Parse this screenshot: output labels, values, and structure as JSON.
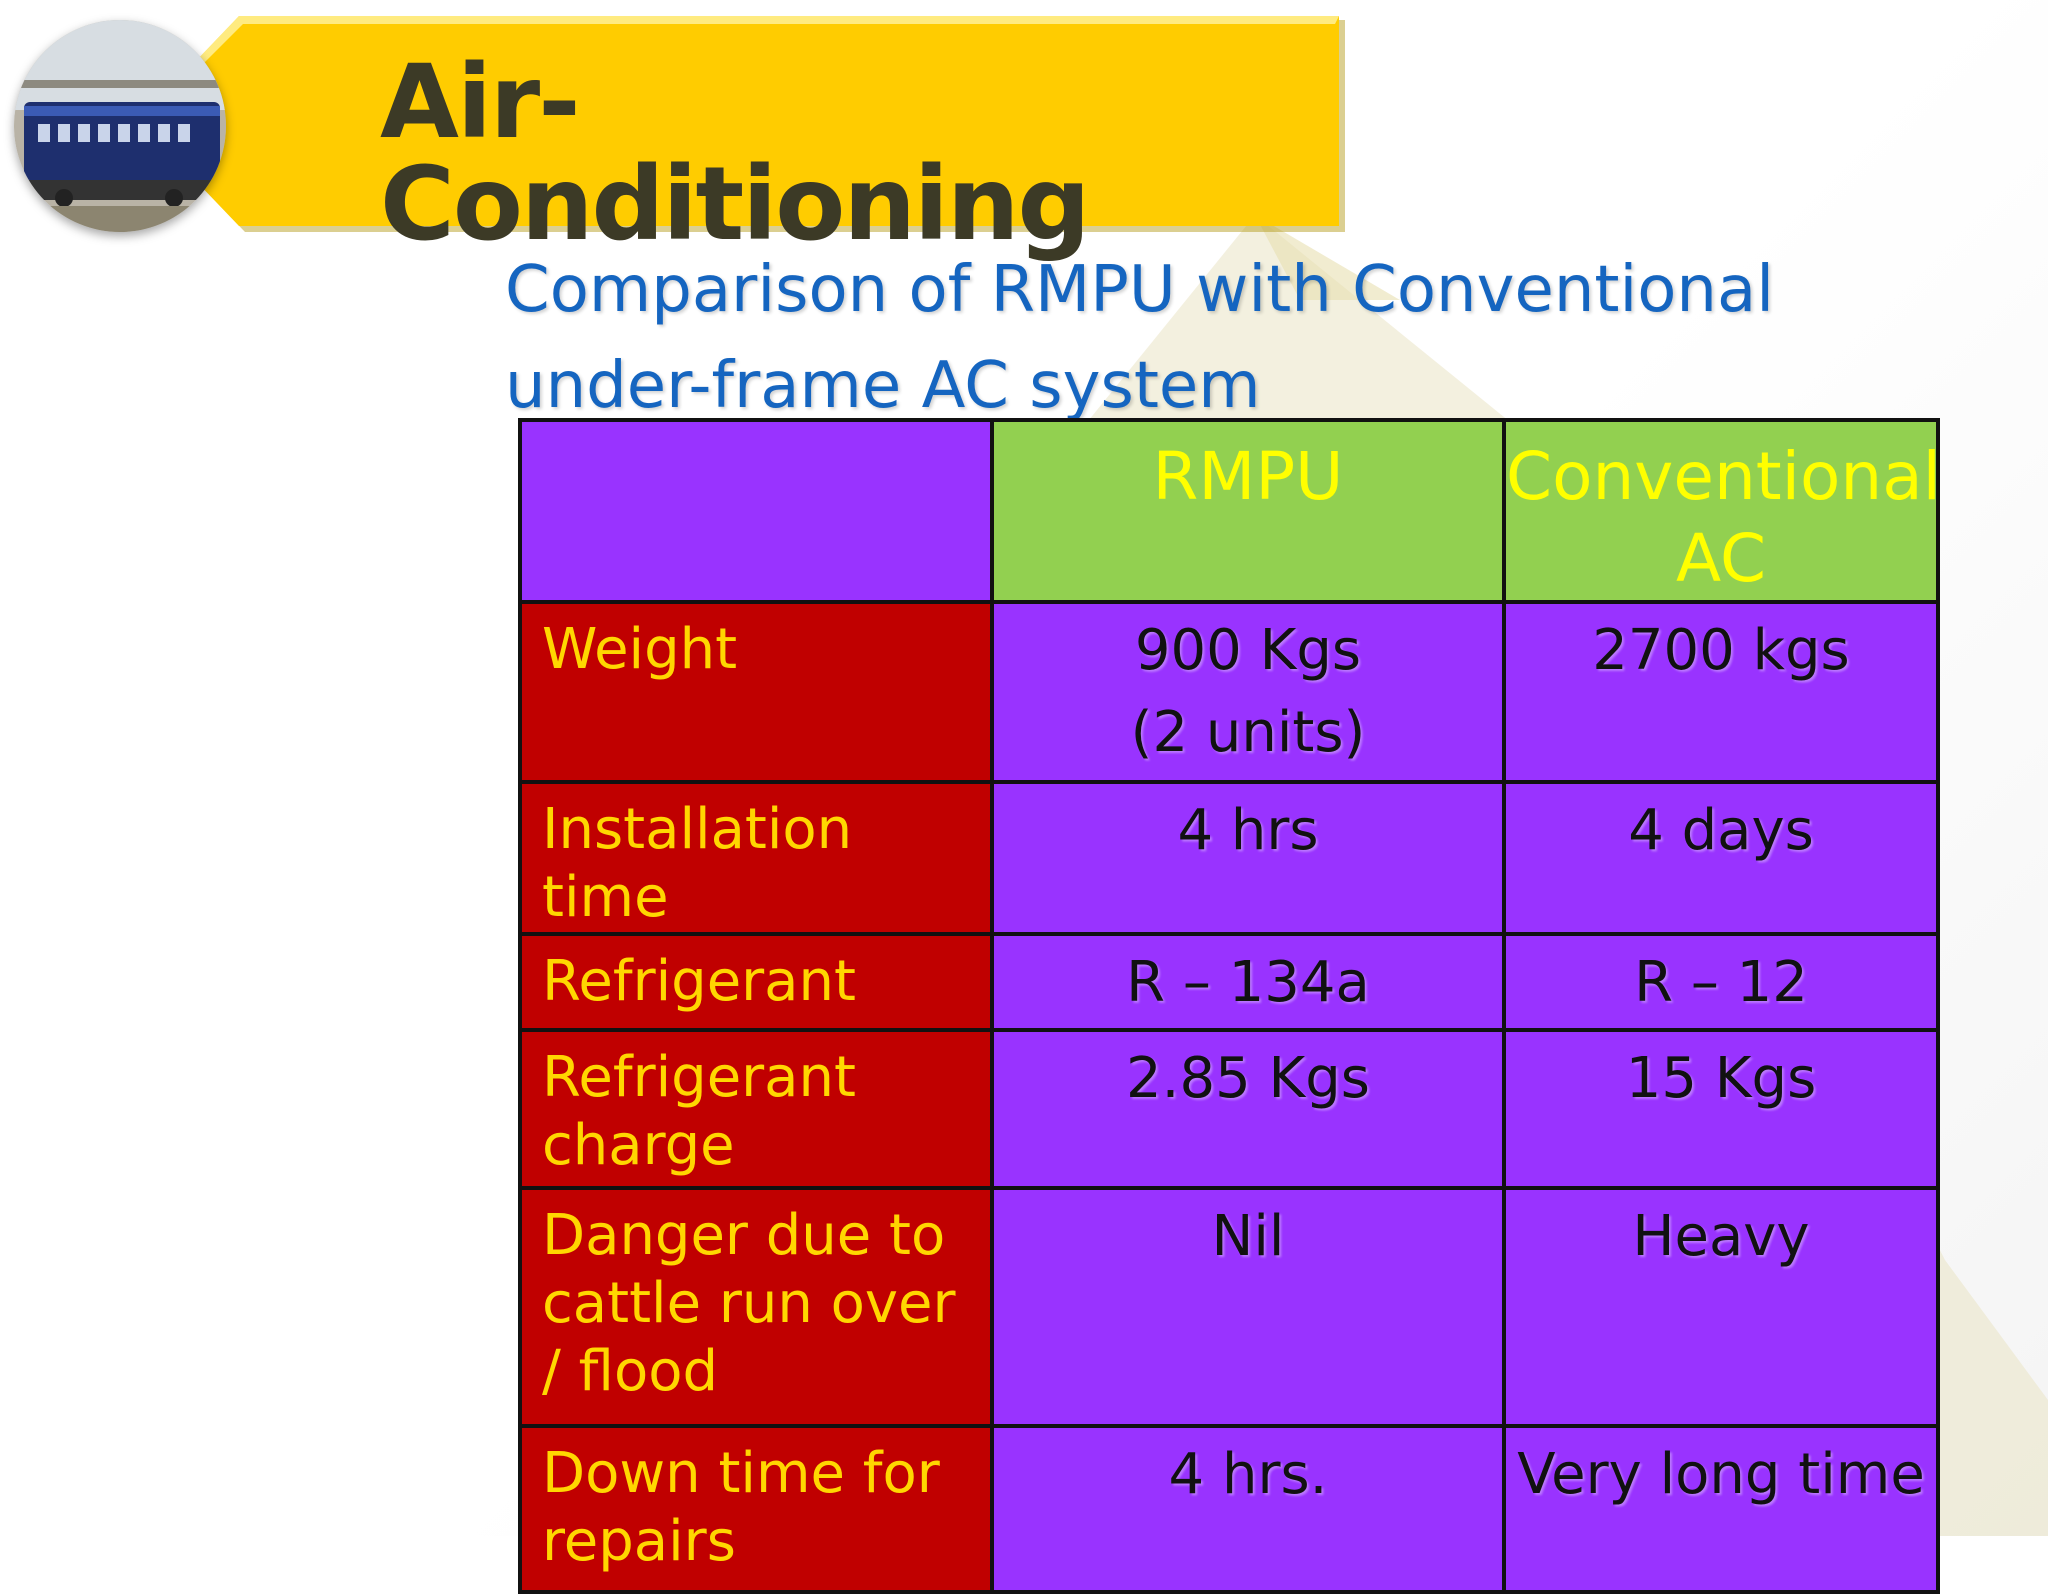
{
  "title": "Air-Conditioning",
  "subtitle": [
    "Comparison of RMPU with Conventional",
    "under-frame AC system"
  ],
  "colors": {
    "banner": "#ffcc00",
    "subtitle": "#1565c0",
    "header_cell": "#92d050",
    "label_cell": "#c00000",
    "value_cell": "#9933ff",
    "label_text": "#ffd700"
  },
  "logo": {
    "icon": "train-coach-photo"
  },
  "table": {
    "columns": [
      "",
      [
        "RMPU"
      ],
      [
        "Conventional",
        "AC"
      ]
    ],
    "rows": [
      {
        "label": "Weight",
        "rmpu": [
          "900 Kgs",
          "(2 units)"
        ],
        "conventional": [
          "2700 kgs"
        ]
      },
      {
        "label": "Installation time",
        "rmpu": [
          "4 hrs"
        ],
        "conventional": [
          "4 days"
        ]
      },
      {
        "label": "Refrigerant",
        "rmpu": [
          "R – 134a"
        ],
        "conventional": [
          "R – 12"
        ]
      },
      {
        "label": "Refrigerant charge",
        "rmpu": [
          "2.85 Kgs"
        ],
        "conventional": [
          "15 Kgs"
        ]
      },
      {
        "label": "Danger due to cattle run over / flood",
        "rmpu": [
          "Nil"
        ],
        "conventional": [
          "Heavy"
        ]
      },
      {
        "label": "Down time for repairs",
        "rmpu": [
          "4 hrs."
        ],
        "conventional": [
          "Very long time"
        ]
      }
    ]
  }
}
